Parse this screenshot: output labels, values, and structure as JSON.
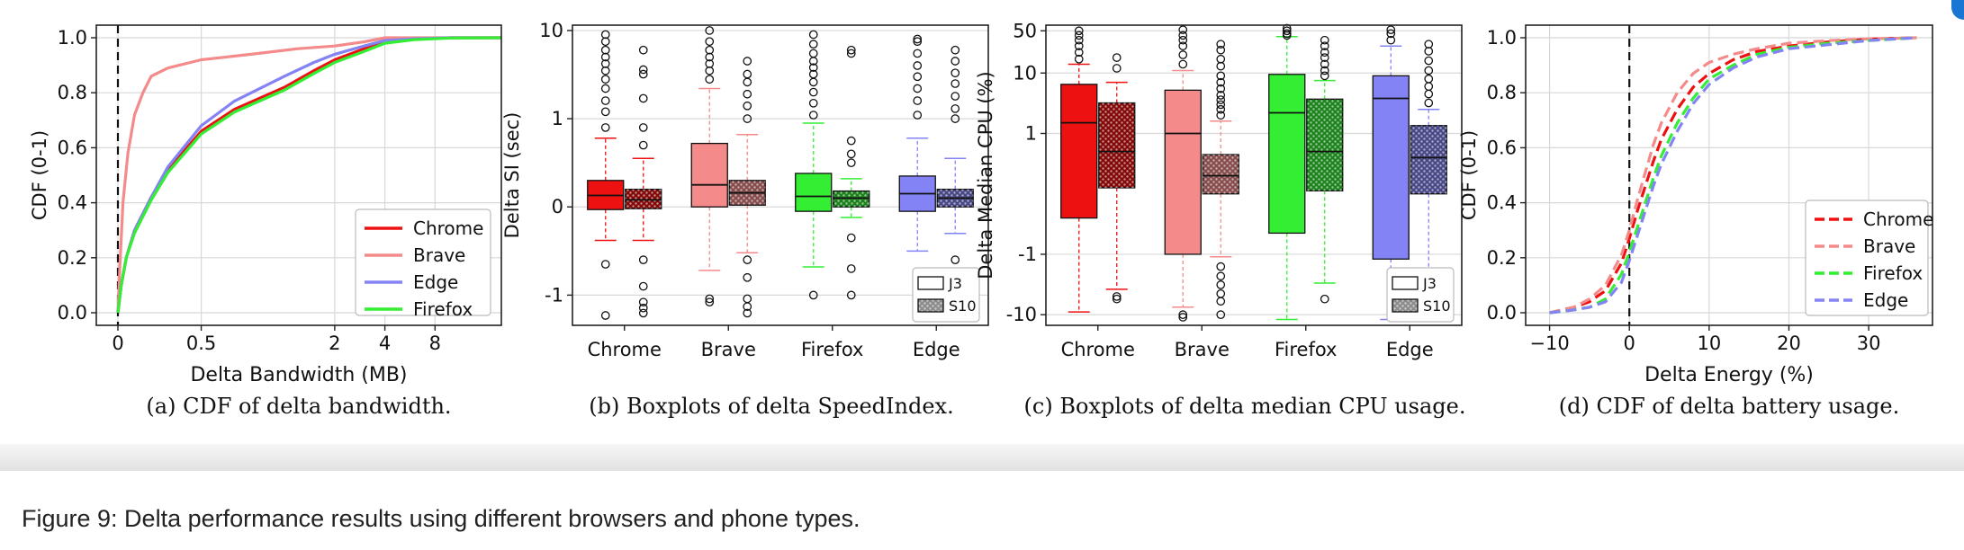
{
  "figure_caption": "Figure 9: Delta performance results using different browsers and phone types.",
  "colors": {
    "chrome": "#ee1111",
    "brave": "#f48a8a",
    "firefox": "#33ee33",
    "edge": "#8383f5"
  },
  "chart_data": [
    {
      "id": "a",
      "type": "line",
      "caption": "(a)  CDF of delta bandwidth.",
      "xlabel": "Delta Bandwidth (MB)",
      "ylabel": "CDF (0-1)",
      "x_scale": "symlog",
      "x_ticks": [
        "0",
        "0.5",
        "2",
        "4",
        "8"
      ],
      "y_ticks": [
        "0.0",
        "0.2",
        "0.4",
        "0.6",
        "0.8",
        "1.0"
      ],
      "ylim": [
        0,
        1
      ],
      "vline_x": 0,
      "legend": "lower-right",
      "series": [
        {
          "name": "Chrome",
          "x": [
            0,
            0.02,
            0.05,
            0.1,
            0.2,
            0.3,
            0.5,
            0.7,
            1.0,
            1.5,
            2,
            3,
            4,
            6,
            10,
            20
          ],
          "y": [
            0,
            0.1,
            0.2,
            0.3,
            0.42,
            0.52,
            0.66,
            0.74,
            0.82,
            0.88,
            0.92,
            0.96,
            0.985,
            0.995,
            1.0,
            1.0
          ]
        },
        {
          "name": "Brave",
          "x": [
            0,
            0.01,
            0.03,
            0.06,
            0.1,
            0.15,
            0.2,
            0.3,
            0.5,
            0.8,
            1.2,
            2,
            3,
            4,
            20
          ],
          "y": [
            0,
            0.15,
            0.4,
            0.58,
            0.72,
            0.8,
            0.86,
            0.89,
            0.92,
            0.94,
            0.96,
            0.97,
            0.985,
            1.0,
            1.0
          ]
        },
        {
          "name": "Edge",
          "x": [
            0,
            0.02,
            0.05,
            0.1,
            0.2,
            0.3,
            0.5,
            0.7,
            1.0,
            1.5,
            2,
            3,
            4,
            6,
            10,
            20
          ],
          "y": [
            0,
            0.1,
            0.2,
            0.3,
            0.42,
            0.53,
            0.68,
            0.77,
            0.86,
            0.91,
            0.94,
            0.97,
            0.99,
            0.996,
            1.0,
            1.0
          ]
        },
        {
          "name": "Firefox",
          "x": [
            0,
            0.02,
            0.05,
            0.1,
            0.2,
            0.3,
            0.5,
            0.7,
            1.0,
            1.5,
            2,
            3,
            4,
            6,
            10,
            20
          ],
          "y": [
            0,
            0.1,
            0.2,
            0.29,
            0.41,
            0.51,
            0.65,
            0.73,
            0.81,
            0.87,
            0.91,
            0.95,
            0.98,
            0.993,
            0.999,
            1.0
          ]
        }
      ]
    },
    {
      "id": "b",
      "type": "boxplot",
      "caption": "(b)  Boxplots of delta SpeedIndex.",
      "xlabel": "",
      "ylabel": "Delta SI (sec)",
      "y_scale": "symlog",
      "y_ticks": [
        "-1",
        "0",
        "1",
        "10"
      ],
      "categories": [
        "Chrome",
        "Brave",
        "Firefox",
        "Edge"
      ],
      "legend": [
        "J3",
        "S10"
      ],
      "boxes": [
        {
          "browser": "Chrome",
          "device": "J3",
          "q1": -0.03,
          "median": 0.13,
          "q3": 0.3,
          "whisker_low": -0.38,
          "whisker_high": 0.78,
          "outliers": [
            -1.7,
            -0.65,
            0.9,
            1.2,
            1.6,
            2.2,
            2.8,
            3.5,
            4.2,
            5,
            6,
            7.5,
            9
          ]
        },
        {
          "browser": "Chrome",
          "device": "S10",
          "q1": -0.02,
          "median": 0.08,
          "q3": 0.2,
          "whisker_low": -0.38,
          "whisker_high": 0.55,
          "outliers": [
            -1.6,
            -1.4,
            -1.2,
            -0.9,
            -0.6,
            0.7,
            0.9,
            1.7,
            3.2,
            3.6,
            6
          ]
        },
        {
          "browser": "Brave",
          "device": "J3",
          "q1": 0.0,
          "median": 0.25,
          "q3": 0.72,
          "whisker_low": -0.72,
          "whisker_high": 2.2,
          "outliers": [
            -1.2,
            -1.1,
            2.8,
            3.5,
            4.2,
            5,
            6,
            7.5,
            10
          ]
        },
        {
          "browser": "Brave",
          "device": "S10",
          "q1": 0.02,
          "median": 0.16,
          "q3": 0.3,
          "whisker_low": -0.52,
          "whisker_high": 0.82,
          "outliers": [
            -1.6,
            -1.35,
            -1.1,
            -0.8,
            -0.6,
            1.0,
            1.4,
            1.9,
            2.6,
            3.2,
            4.5
          ]
        },
        {
          "browser": "Firefox",
          "device": "J3",
          "q1": -0.05,
          "median": 0.12,
          "q3": 0.38,
          "whisker_low": -0.68,
          "whisker_high": 0.95,
          "outliers": [
            -1.0,
            1.1,
            1.5,
            2.0,
            2.6,
            3.2,
            3.8,
            4.5,
            5.5,
            7,
            9
          ]
        },
        {
          "browser": "Firefox",
          "device": "S10",
          "q1": 0.0,
          "median": 0.1,
          "q3": 0.18,
          "whisker_low": -0.12,
          "whisker_high": 0.32,
          "outliers": [
            -1.0,
            -0.7,
            -0.35,
            0.5,
            0.6,
            0.75,
            5.5,
            6
          ]
        },
        {
          "browser": "Edge",
          "device": "J3",
          "q1": -0.05,
          "median": 0.15,
          "q3": 0.35,
          "whisker_low": -0.5,
          "whisker_high": 0.78,
          "outliers": [
            -0.95,
            1.1,
            1.6,
            2.2,
            3.0,
            4.0,
            5.5,
            7.5,
            8
          ]
        },
        {
          "browser": "Edge",
          "device": "S10",
          "q1": 0.0,
          "median": 0.1,
          "q3": 0.2,
          "whisker_low": -0.3,
          "whisker_high": 0.55,
          "outliers": [
            -1.0,
            -0.8,
            -0.6,
            1.0,
            1.3,
            1.8,
            2.5,
            3.3,
            4.5,
            6
          ]
        }
      ]
    },
    {
      "id": "c",
      "type": "boxplot",
      "caption": "(c)  Boxplots of delta median CPU usage.",
      "xlabel": "",
      "ylabel": "Delta Median CPU (%)",
      "y_scale": "symlog",
      "y_ticks": [
        "-10",
        "-1",
        "1",
        "10",
        "50"
      ],
      "categories": [
        "Chrome",
        "Brave",
        "Firefox",
        "Edge"
      ],
      "legend": [
        "J3",
        "S10"
      ],
      "boxes": [
        {
          "browser": "Chrome",
          "device": "J3",
          "q1": -0.4,
          "median": 1.5,
          "q3": 6.5,
          "whisker_low": -9,
          "whisker_high": 14,
          "outliers": [
            17,
            22,
            28,
            35,
            42,
            50
          ]
        },
        {
          "browser": "Chrome",
          "device": "S10",
          "q1": 0.1,
          "median": 0.7,
          "q3": 3.2,
          "whisker_low": -3.8,
          "whisker_high": 7,
          "outliers": [
            -5.5,
            -5,
            12,
            18
          ]
        },
        {
          "browser": "Brave",
          "device": "J3",
          "q1": -1.0,
          "median": 1.0,
          "q3": 5.2,
          "whisker_low": -7.5,
          "whisker_high": 11,
          "outliers": [
            -11,
            -10,
            14,
            20,
            28,
            35,
            42,
            52
          ]
        },
        {
          "browser": "Brave",
          "device": "S10",
          "q1": 0.0,
          "median": 0.3,
          "q3": 0.65,
          "whisker_low": -1.1,
          "whisker_high": 1.6,
          "outliers": [
            -10,
            -6,
            -4.5,
            -3.2,
            -2.3,
            -1.6,
            2.0,
            2.5,
            3.0,
            3.6,
            4.3,
            5.5,
            7,
            9,
            13,
            17,
            24,
            30
          ]
        },
        {
          "browser": "Firefox",
          "device": "J3",
          "q1": -0.65,
          "median": 2.2,
          "q3": 9.5,
          "whisker_low": -12,
          "whisker_high": 40,
          "outliers": [
            42,
            45,
            50,
            55
          ]
        },
        {
          "browser": "Firefox",
          "device": "S10",
          "q1": 0.05,
          "median": 0.7,
          "q3": 3.7,
          "whisker_low": -3.0,
          "whisker_high": 7.5,
          "outliers": [
            -5.5,
            9,
            11,
            14,
            18,
            22,
            28,
            35
          ]
        },
        {
          "browser": "Edge",
          "device": "J3",
          "q1": -1.2,
          "median": 3.8,
          "q3": 9,
          "whisker_low": -12,
          "whisker_high": 28,
          "outliers": [
            35,
            45,
            52
          ]
        },
        {
          "browser": "Edge",
          "device": "S10",
          "q1": 0.0,
          "median": 0.6,
          "q3": 1.35,
          "whisker_low": -3.0,
          "whisker_high": 2.5,
          "outliers": [
            -9,
            -5.5,
            -3.4,
            3.2,
            4.5,
            6,
            8,
            11,
            16,
            23,
            30
          ]
        }
      ]
    },
    {
      "id": "d",
      "type": "line",
      "caption": "(d)  CDF of delta battery usage.",
      "xlabel": "Delta Energy (%)",
      "ylabel": "CDF (0-1)",
      "x_ticks": [
        "−10",
        "0",
        "10",
        "20",
        "30"
      ],
      "y_ticks": [
        "0.0",
        "0.2",
        "0.4",
        "0.6",
        "0.8",
        "1.0"
      ],
      "xlim": [
        -13,
        38
      ],
      "ylim": [
        0,
        1
      ],
      "vline_x": 0,
      "line_style": "dashed",
      "legend": "lower-right",
      "series": [
        {
          "name": "Chrome",
          "x": [
            -10,
            -7,
            -5,
            -3,
            -1,
            0,
            1,
            2,
            3,
            4,
            6,
            8,
            10,
            13,
            16,
            20,
            25,
            30,
            36
          ],
          "y": [
            0.0,
            0.02,
            0.04,
            0.08,
            0.18,
            0.27,
            0.37,
            0.46,
            0.55,
            0.63,
            0.74,
            0.82,
            0.87,
            0.92,
            0.95,
            0.97,
            0.985,
            0.995,
            1.0
          ]
        },
        {
          "name": "Brave",
          "x": [
            -10,
            -7,
            -5,
            -3,
            -1,
            0,
            1,
            2,
            3,
            4,
            6,
            8,
            10,
            13,
            16,
            20,
            25,
            30,
            36
          ],
          "y": [
            0.0,
            0.02,
            0.05,
            0.1,
            0.21,
            0.3,
            0.41,
            0.51,
            0.61,
            0.69,
            0.8,
            0.87,
            0.91,
            0.94,
            0.96,
            0.98,
            0.99,
            0.996,
            1.0
          ]
        },
        {
          "name": "Firefox",
          "x": [
            -10,
            -7,
            -5,
            -3,
            -1,
            0,
            1,
            2,
            3,
            4,
            6,
            8,
            10,
            13,
            16,
            20,
            25,
            30,
            36
          ],
          "y": [
            0.0,
            0.01,
            0.02,
            0.05,
            0.14,
            0.22,
            0.31,
            0.4,
            0.49,
            0.57,
            0.69,
            0.78,
            0.85,
            0.9,
            0.94,
            0.965,
            0.98,
            0.99,
            1.0
          ]
        },
        {
          "name": "Edge",
          "x": [
            -10,
            -7,
            -5,
            -3,
            -1,
            0,
            1,
            2,
            3,
            4,
            6,
            8,
            10,
            13,
            16,
            20,
            25,
            30,
            36
          ],
          "y": [
            0.0,
            0.01,
            0.02,
            0.04,
            0.11,
            0.19,
            0.28,
            0.37,
            0.46,
            0.54,
            0.66,
            0.76,
            0.83,
            0.89,
            0.93,
            0.96,
            0.975,
            0.99,
            1.0
          ]
        }
      ]
    }
  ]
}
